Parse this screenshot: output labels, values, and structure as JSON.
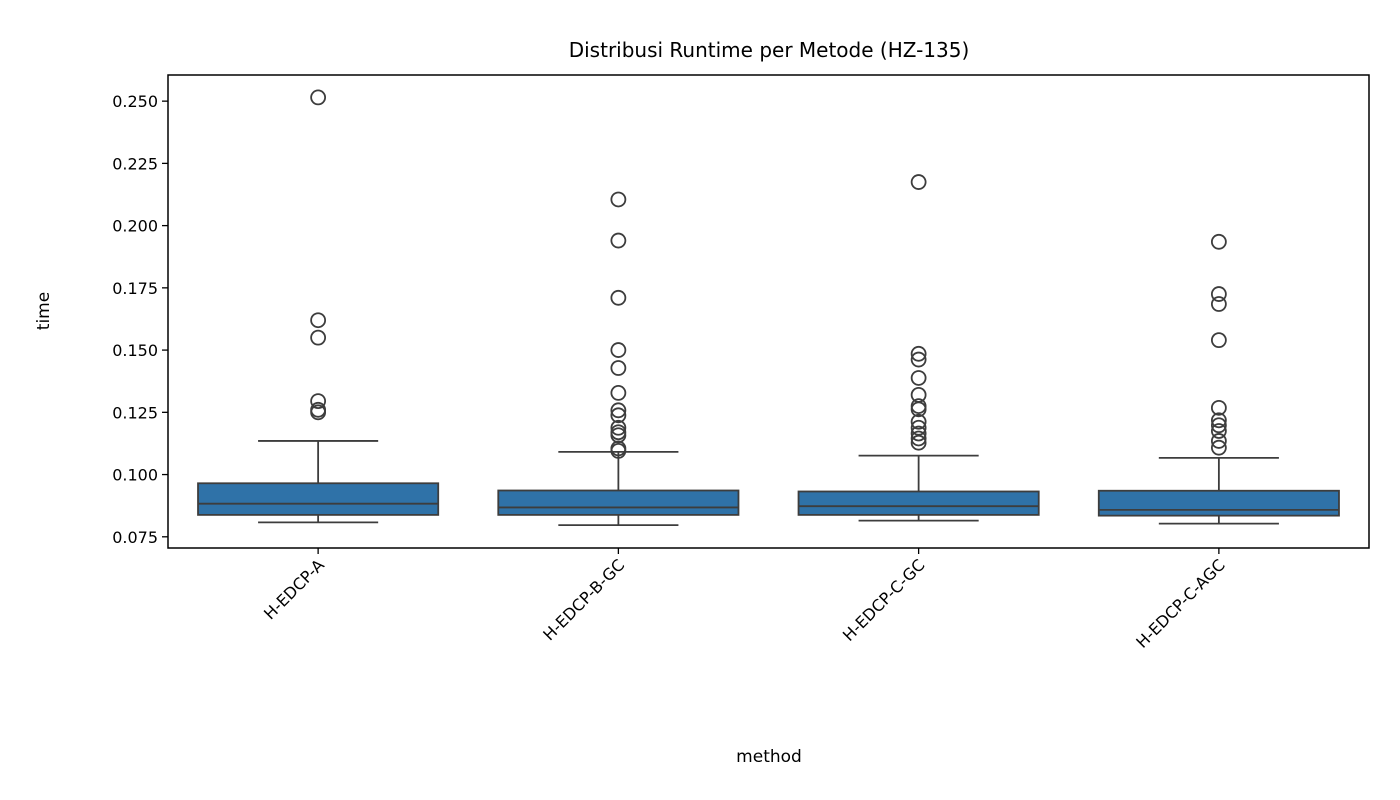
{
  "chart_data": {
    "type": "box",
    "title": "Distribusi Runtime per Metode (HZ-135)",
    "xlabel": "method",
    "ylabel": "time",
    "ylim": [
      0.0705,
      0.2605
    ],
    "yticks": [
      "0.075",
      "0.100",
      "0.125",
      "0.150",
      "0.175",
      "0.200",
      "0.225",
      "0.250"
    ],
    "grid": false,
    "box_color": "#2f72a8",
    "edge_color": "#3d3d3d",
    "categories": [
      "H-EDCP-A",
      "H-EDCP-B-GC",
      "H-EDCP-C-GC",
      "H-EDCP-C-AGC"
    ],
    "boxes": [
      {
        "whisker_low": 0.0808,
        "q1": 0.0838,
        "median": 0.0883,
        "q3": 0.0965,
        "whisker_high": 0.1135,
        "outliers": [
          0.2515,
          0.162,
          0.155,
          0.1295,
          0.126,
          0.125
        ]
      },
      {
        "whisker_low": 0.0797,
        "q1": 0.0838,
        "median": 0.0868,
        "q3": 0.0936,
        "whisker_high": 0.1091,
        "outliers": [
          0.2105,
          0.194,
          0.171,
          0.15,
          0.1428,
          0.1328,
          0.1258,
          0.1238,
          0.1188,
          0.117,
          0.1158,
          0.1105,
          0.1095
        ]
      },
      {
        "whisker_low": 0.0815,
        "q1": 0.0838,
        "median": 0.0873,
        "q3": 0.0932,
        "whisker_high": 0.1076,
        "outliers": [
          0.2175,
          0.1485,
          0.1462,
          0.1388,
          0.132,
          0.1275,
          0.1262,
          0.1212,
          0.1188,
          0.1165,
          0.1145,
          0.1128
        ]
      },
      {
        "whisker_low": 0.0803,
        "q1": 0.0835,
        "median": 0.0858,
        "q3": 0.0935,
        "whisker_high": 0.1067,
        "outliers": [
          0.1935,
          0.1725,
          0.1685,
          0.154,
          0.1268,
          0.1218,
          0.1198,
          0.1175,
          0.1135,
          0.1108
        ]
      }
    ]
  }
}
